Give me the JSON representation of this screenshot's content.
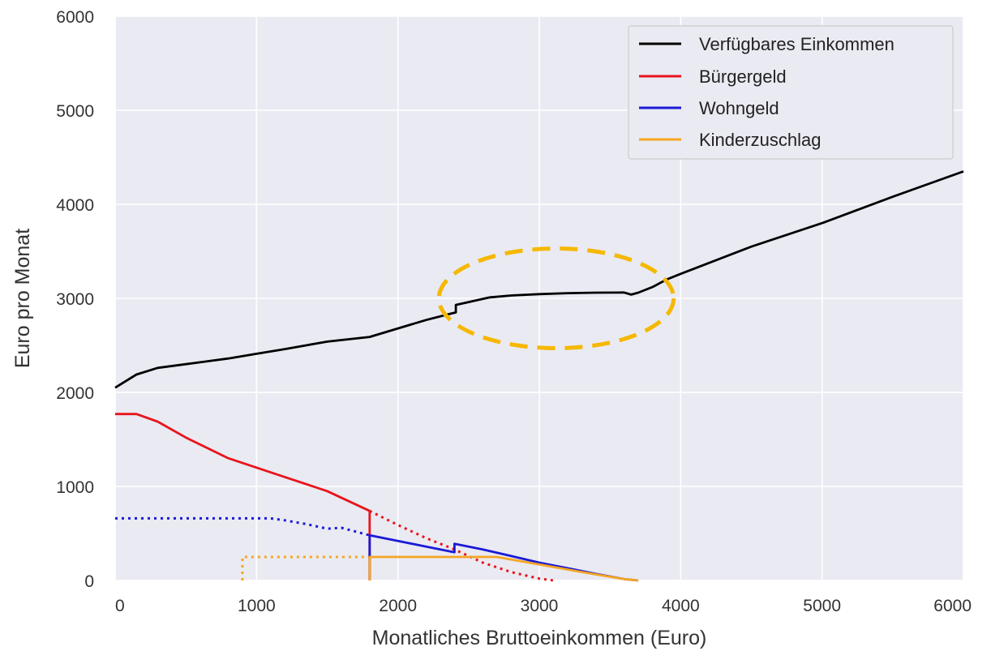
{
  "chart_data": {
    "type": "line",
    "title": "",
    "xlabel": "Monatliches Bruttoeinkommen (Euro)",
    "ylabel": "Euro pro Monat",
    "xlim": [
      0,
      6000
    ],
    "ylim": [
      0,
      6000
    ],
    "xticks": [
      0,
      1000,
      2000,
      3000,
      4000,
      5000,
      6000
    ],
    "yticks": [
      0,
      1000,
      2000,
      3000,
      4000,
      5000,
      6000
    ],
    "grid": true,
    "legend_position": "top-right",
    "series": [
      {
        "name": "Verfügbares Einkommen",
        "color": "#000000",
        "style": "solid",
        "points": [
          [
            0,
            2050
          ],
          [
            150,
            2190
          ],
          [
            300,
            2260
          ],
          [
            500,
            2300
          ],
          [
            800,
            2360
          ],
          [
            1000,
            2410
          ],
          [
            1200,
            2460
          ],
          [
            1500,
            2540
          ],
          [
            1800,
            2590
          ],
          [
            2000,
            2680
          ],
          [
            2200,
            2770
          ],
          [
            2380,
            2840
          ],
          [
            2410,
            2850
          ],
          [
            2410,
            2930
          ],
          [
            2500,
            2960
          ],
          [
            2650,
            3010
          ],
          [
            2800,
            3030
          ],
          [
            3000,
            3045
          ],
          [
            3200,
            3055
          ],
          [
            3400,
            3060
          ],
          [
            3600,
            3062
          ],
          [
            3650,
            3040
          ],
          [
            3700,
            3060
          ],
          [
            3800,
            3120
          ],
          [
            3900,
            3200
          ],
          [
            4000,
            3260
          ],
          [
            4500,
            3550
          ],
          [
            5000,
            3800
          ],
          [
            5500,
            4080
          ],
          [
            6000,
            4350
          ]
        ]
      },
      {
        "name": "Bürgergeld",
        "color": "#e8141c",
        "style": "solid",
        "points": [
          [
            0,
            1770
          ],
          [
            150,
            1770
          ],
          [
            300,
            1690
          ],
          [
            500,
            1520
          ],
          [
            800,
            1300
          ],
          [
            1000,
            1200
          ],
          [
            1200,
            1100
          ],
          [
            1500,
            950
          ],
          [
            1800,
            740
          ],
          [
            1800,
            0
          ]
        ]
      },
      {
        "name": "",
        "color": "#e8141c",
        "style": "dotted",
        "points": [
          [
            1800,
            740
          ],
          [
            2000,
            590
          ],
          [
            2200,
            450
          ],
          [
            2400,
            330
          ],
          [
            2600,
            190
          ],
          [
            2800,
            90
          ],
          [
            3000,
            20
          ],
          [
            3100,
            0
          ]
        ]
      },
      {
        "name": "Wohngeld",
        "color": "#1a1ad6",
        "style": "solid",
        "points": [
          [
            1800,
            0
          ],
          [
            1800,
            480
          ],
          [
            2000,
            420
          ],
          [
            2200,
            360
          ],
          [
            2400,
            300
          ],
          [
            2400,
            390
          ],
          [
            2600,
            330
          ],
          [
            2800,
            260
          ],
          [
            3000,
            190
          ],
          [
            3200,
            130
          ],
          [
            3400,
            70
          ],
          [
            3600,
            15
          ],
          [
            3700,
            0
          ]
        ]
      },
      {
        "name": "",
        "color": "#1a1ad6",
        "style": "dotted",
        "points": [
          [
            0,
            660
          ],
          [
            1100,
            660
          ],
          [
            1200,
            640
          ],
          [
            1350,
            600
          ],
          [
            1500,
            550
          ],
          [
            1600,
            560
          ],
          [
            1700,
            520
          ],
          [
            1800,
            480
          ]
        ]
      },
      {
        "name": "Kinderzuschlag",
        "color": "#f5a623",
        "style": "solid",
        "points": [
          [
            1800,
            0
          ],
          [
            1800,
            250
          ],
          [
            2000,
            250
          ],
          [
            2600,
            250
          ],
          [
            2700,
            250
          ],
          [
            3000,
            170
          ],
          [
            3300,
            90
          ],
          [
            3600,
            15
          ],
          [
            3700,
            0
          ]
        ]
      },
      {
        "name": "",
        "color": "#f5a623",
        "style": "dotted",
        "points": [
          [
            900,
            0
          ],
          [
            900,
            250
          ],
          [
            1000,
            250
          ],
          [
            1800,
            250
          ]
        ]
      }
    ],
    "annotations": [
      {
        "type": "ellipse",
        "style": "dashed",
        "color": "#f5b800",
        "center": [
          3120,
          3000
        ],
        "rx": 830,
        "ry": 530
      }
    ]
  }
}
